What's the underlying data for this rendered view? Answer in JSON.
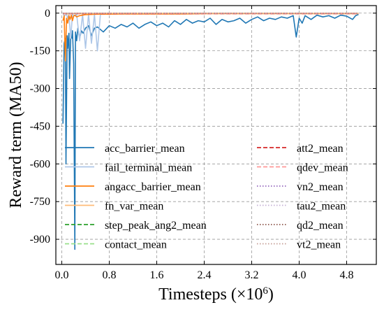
{
  "chart_data": {
    "type": "line",
    "title": "",
    "xlabel": "Timesteps (×10",
    "xlabel_exponent": "6",
    "xlabel_suffix": ")",
    "ylabel": "Reward term (MA50)",
    "xlim": [
      -0.1,
      5.3
    ],
    "ylim": [
      -1000,
      30
    ],
    "x_ticks": [
      0.0,
      0.8,
      1.6,
      2.4,
      3.2,
      4.0,
      4.8
    ],
    "x_tick_labels": [
      "0.0",
      "0.8",
      "1.6",
      "2.4",
      "3.2",
      "4.0",
      "4.8"
    ],
    "y_ticks": [
      0,
      -150,
      -300,
      -450,
      -600,
      -750,
      -900
    ],
    "y_tick_labels": [
      "0",
      "-150",
      "-300",
      "-450",
      "-600",
      "-750",
      "-900"
    ],
    "grid": true,
    "legend_position": "lower-center",
    "legend_columns": 2,
    "series": [
      {
        "name": "acc_barrier_mean",
        "color": "#1f77b4",
        "style": "solid",
        "x": [
          0.02,
          0.04,
          0.06,
          0.07,
          0.09,
          0.1,
          0.12,
          0.13,
          0.15,
          0.17,
          0.18,
          0.2,
          0.22,
          0.23,
          0.25,
          0.27,
          0.3,
          0.33,
          0.36,
          0.4,
          0.45,
          0.5,
          0.55,
          0.6,
          0.7,
          0.8,
          0.9,
          1.0,
          1.1,
          1.2,
          1.3,
          1.4,
          1.5,
          1.6,
          1.7,
          1.8,
          1.9,
          2.0,
          2.1,
          2.2,
          2.3,
          2.4,
          2.5,
          2.6,
          2.7,
          2.8,
          2.9,
          3.0,
          3.1,
          3.2,
          3.3,
          3.4,
          3.5,
          3.6,
          3.7,
          3.8,
          3.9,
          3.95,
          4.0,
          4.05,
          4.1,
          4.2,
          4.3,
          4.4,
          4.5,
          4.6,
          4.7,
          4.8,
          4.9,
          4.95,
          5.0
        ],
        "y": [
          -440,
          -120,
          -100,
          -600,
          -90,
          -140,
          -80,
          -260,
          -90,
          -100,
          -70,
          -200,
          -940,
          -75,
          -110,
          -60,
          -100,
          -70,
          -80,
          -60,
          -50,
          -90,
          -60,
          -55,
          -75,
          -50,
          -60,
          -45,
          -55,
          -40,
          -60,
          -45,
          -35,
          -50,
          -40,
          -55,
          -30,
          -45,
          -25,
          -40,
          -30,
          -35,
          -20,
          -45,
          -25,
          -35,
          -30,
          -20,
          -40,
          -25,
          -15,
          -30,
          -20,
          -25,
          -15,
          -20,
          -10,
          -95,
          -20,
          -40,
          -10,
          -25,
          -8,
          -15,
          -10,
          -20,
          -8,
          -12,
          -25,
          -10,
          -5
        ]
      },
      {
        "name": "fail_terminal_mean",
        "color": "#aec7e8",
        "style": "solid",
        "x": [
          0.02,
          0.05,
          0.08,
          0.1,
          0.12,
          0.15,
          0.18,
          0.2,
          0.25,
          0.3,
          0.35,
          0.4,
          0.45,
          0.5,
          0.55,
          0.6,
          0.65
        ],
        "y": [
          -5,
          -10,
          -5,
          -20,
          -5,
          -100,
          -5,
          -10,
          -5,
          -110,
          -5,
          -140,
          -5,
          -120,
          -5,
          -150,
          -5
        ]
      },
      {
        "name": "angacc_barrier_mean",
        "color": "#ff7f0e",
        "style": "solid",
        "x": [
          0.02,
          0.04,
          0.06,
          0.08,
          0.1,
          0.12,
          0.14,
          0.16,
          0.18,
          0.2,
          0.22,
          0.25,
          0.3,
          0.35,
          0.4,
          0.5,
          0.6,
          0.8,
          1.0,
          1.5,
          2.0,
          2.5,
          3.0,
          3.5,
          4.0,
          4.5,
          5.0
        ],
        "y": [
          -30,
          -10,
          -190,
          -20,
          -40,
          -10,
          -25,
          -8,
          -30,
          -12,
          -8,
          -15,
          -10,
          -8,
          -6,
          -5,
          -4,
          -4,
          -3,
          -3,
          -3,
          -2,
          -2,
          -2,
          -2,
          -2,
          -2
        ]
      },
      {
        "name": "fn_var_mean",
        "color": "#ffbb78",
        "style": "solid",
        "x": [
          0.02,
          0.05,
          0.1,
          0.2,
          0.4,
          0.8,
          1.6,
          2.4,
          3.2,
          4.0,
          4.8,
          5.0
        ],
        "y": [
          -2,
          -2,
          -3,
          -2,
          -2,
          -1,
          -1,
          -1,
          -1,
          -1,
          -1,
          -1
        ]
      },
      {
        "name": "step_peak_ang2_mean",
        "color": "#2ca02c",
        "style": "dashed",
        "x": [
          0.02,
          0.5,
          1.0,
          2.0,
          3.0,
          4.0,
          5.0
        ],
        "y": [
          -1,
          -1,
          -1,
          -1,
          -1,
          -1,
          -1
        ]
      },
      {
        "name": "contact_mean",
        "color": "#98df8a",
        "style": "dashed",
        "x": [
          0.02,
          0.5,
          1.0,
          2.0,
          3.0,
          4.0,
          5.0
        ],
        "y": [
          -1,
          -1,
          -1,
          -1,
          -1,
          -1,
          -1
        ]
      },
      {
        "name": "att2_mean",
        "color": "#d62728",
        "style": "dashed",
        "x": [
          0.02,
          0.5,
          1.0,
          2.0,
          3.0,
          4.0,
          5.0
        ],
        "y": [
          -2,
          -2,
          -2,
          -2,
          -2,
          -2,
          -2
        ]
      },
      {
        "name": "qdev_mean",
        "color": "#ff9896",
        "style": "dashed",
        "x": [
          0.02,
          0.5,
          1.0,
          2.0,
          3.0,
          4.0,
          5.0
        ],
        "y": [
          -1,
          -1,
          -1,
          -1,
          -1,
          -1,
          -1
        ]
      },
      {
        "name": "vn2_mean",
        "color": "#9467bd",
        "style": "dotted",
        "x": [
          0.02,
          0.5,
          1.0,
          2.0,
          3.0,
          4.0,
          5.0
        ],
        "y": [
          -1,
          -1,
          -1,
          -1,
          -1,
          -1,
          -1
        ]
      },
      {
        "name": "tau2_mean",
        "color": "#c5b0d5",
        "style": "dotted",
        "x": [
          0.02,
          0.5,
          1.0,
          2.0,
          3.0,
          4.0,
          5.0
        ],
        "y": [
          -1,
          -1,
          -1,
          -1,
          -1,
          -1,
          -1
        ]
      },
      {
        "name": "qd2_mean",
        "color": "#8c564b",
        "style": "dotted",
        "x": [
          0.02,
          0.5,
          1.0,
          2.0,
          3.0,
          4.0,
          5.0
        ],
        "y": [
          -1,
          -1,
          -1,
          -1,
          -1,
          -1,
          -1
        ]
      },
      {
        "name": "vt2_mean",
        "color": "#c49c94",
        "style": "dotted",
        "x": [
          0.02,
          0.5,
          1.0,
          2.0,
          3.0,
          4.0,
          5.0
        ],
        "y": [
          -1,
          -1,
          -1,
          -1,
          -1,
          -1,
          -1
        ]
      }
    ]
  }
}
